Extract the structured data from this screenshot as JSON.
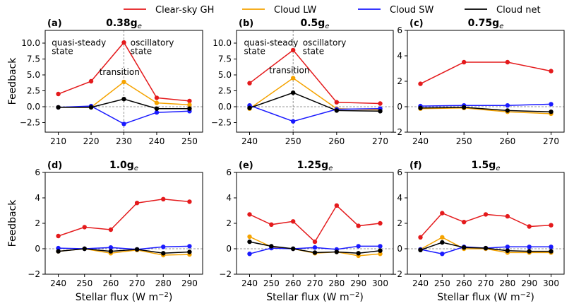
{
  "chart_data": {
    "type": "line",
    "legend": {
      "position": "top",
      "entries": [
        {
          "name": "Clear-sky GH",
          "color": "#e41a1c"
        },
        {
          "name": "Cloud LW",
          "color": "#f5a300"
        },
        {
          "name": "Cloud SW",
          "color": "#1a1aff"
        },
        {
          "name": "Cloud net",
          "color": "#000000"
        }
      ]
    },
    "xlabel": "Stellar flux (W m$^{-2}$)",
    "xlabel_text": "Stellar flux (W m",
    "xlabel_exp": "−2",
    "ylabel": "Feedback",
    "panels": [
      {
        "label": "(a)",
        "title_main": "0.38g",
        "title_sub": "e",
        "x": [
          210,
          220,
          230,
          240,
          250
        ],
        "xticks": [
          "210",
          "220",
          "230",
          "240",
          "250"
        ],
        "ylim": [
          -4,
          12
        ],
        "yticks": [
          "−2.5",
          "0.0",
          "2.5",
          "5.0",
          "7.5",
          "10.0"
        ],
        "ytick_values": [
          -2.5,
          0,
          2.5,
          5,
          7.5,
          10
        ],
        "vline": 230,
        "annotations": [
          {
            "text": "quasi-steady",
            "x": 208,
            "y": 9.6,
            "anchor": "start"
          },
          {
            "text": "state",
            "x": 208,
            "y": 8.3,
            "anchor": "start"
          },
          {
            "text": "oscillatory",
            "x": 232,
            "y": 9.6,
            "anchor": "start"
          },
          {
            "text": "state",
            "x": 232,
            "y": 8.3,
            "anchor": "start"
          },
          {
            "text": "transition",
            "x": 222.5,
            "y": 5.0,
            "anchor": "start"
          }
        ],
        "series": [
          {
            "name": "Clear-sky GH",
            "values": [
              2.0,
              4.0,
              10.1,
              1.4,
              0.9
            ]
          },
          {
            "name": "Cloud LW",
            "values": [
              -0.1,
              -0.1,
              3.9,
              0.6,
              0.3
            ]
          },
          {
            "name": "Cloud SW",
            "values": [
              -0.1,
              0.1,
              -2.7,
              -0.9,
              -0.7
            ]
          },
          {
            "name": "Cloud net",
            "values": [
              -0.1,
              -0.1,
              1.2,
              -0.3,
              -0.3
            ]
          }
        ]
      },
      {
        "label": "(b)",
        "title_main": "0.5g",
        "title_sub": "e",
        "x": [
          240,
          250,
          260,
          270
        ],
        "xticks": [
          "240",
          "250",
          "260",
          "270"
        ],
        "ylim": [
          -4,
          12
        ],
        "yticks": [
          "−2.5",
          "0.0",
          "2.5",
          "5.0",
          "7.5",
          "10.0"
        ],
        "ytick_values": [
          -2.5,
          0,
          2.5,
          5,
          7.5,
          10
        ],
        "vline": 250,
        "annotations": [
          {
            "text": "quasi-steady",
            "x": 238.7,
            "y": 9.6,
            "anchor": "start"
          },
          {
            "text": "state",
            "x": 238.7,
            "y": 8.3,
            "anchor": "start"
          },
          {
            "text": "oscillatory",
            "x": 252.2,
            "y": 9.6,
            "anchor": "start"
          },
          {
            "text": "state",
            "x": 252.2,
            "y": 8.3,
            "anchor": "start"
          },
          {
            "text": "transition",
            "x": 244.5,
            "y": 5.3,
            "anchor": "start"
          }
        ],
        "series": [
          {
            "name": "Clear-sky GH",
            "values": [
              3.7,
              8.9,
              0.7,
              0.5
            ]
          },
          {
            "name": "Cloud LW",
            "values": [
              -0.3,
              4.5,
              -0.3,
              -0.5
            ]
          },
          {
            "name": "Cloud SW",
            "values": [
              0.2,
              -2.3,
              -0.4,
              -0.3
            ]
          },
          {
            "name": "Cloud net",
            "values": [
              -0.2,
              2.2,
              -0.6,
              -0.7
            ]
          }
        ]
      },
      {
        "label": "(c)",
        "title_main": "0.75g",
        "title_sub": "e",
        "x": [
          240,
          250,
          260,
          270
        ],
        "xticks": [
          "240",
          "250",
          "260",
          "270"
        ],
        "ylim": [
          -2,
          6
        ],
        "yticks": [
          "−2",
          "0",
          "2",
          "4",
          "6"
        ],
        "ytick_values": [
          -2,
          0,
          2,
          4,
          6
        ],
        "series": [
          {
            "name": "Clear-sky GH",
            "values": [
              1.8,
              3.5,
              3.5,
              2.8
            ]
          },
          {
            "name": "Cloud LW",
            "values": [
              -0.15,
              -0.1,
              -0.4,
              -0.55
            ]
          },
          {
            "name": "Cloud SW",
            "values": [
              0.05,
              0.1,
              0.1,
              0.2
            ]
          },
          {
            "name": "Cloud net",
            "values": [
              -0.1,
              -0.05,
              -0.3,
              -0.4
            ]
          }
        ]
      },
      {
        "label": "(d)",
        "title_main": "1.0g",
        "title_sub": "e",
        "x": [
          240,
          250,
          260,
          270,
          280,
          290
        ],
        "xticks": [
          "240",
          "250",
          "260",
          "270",
          "280",
          "290"
        ],
        "ylim": [
          -2,
          6
        ],
        "yticks": [
          "−2",
          "0",
          "2",
          "4",
          "6"
        ],
        "ytick_values": [
          -2,
          0,
          2,
          4,
          6
        ],
        "series": [
          {
            "name": "Clear-sky GH",
            "values": [
              1.0,
              1.7,
              1.5,
              3.6,
              3.9,
              3.7
            ]
          },
          {
            "name": "Cloud LW",
            "values": [
              -0.2,
              0.0,
              -0.35,
              -0.1,
              -0.5,
              -0.45
            ]
          },
          {
            "name": "Cloud SW",
            "values": [
              0.05,
              0.0,
              0.1,
              -0.05,
              0.15,
              0.2
            ]
          },
          {
            "name": "Cloud net",
            "values": [
              -0.2,
              0.0,
              -0.2,
              -0.05,
              -0.35,
              -0.25
            ]
          }
        ]
      },
      {
        "label": "(e)",
        "title_main": "1.25g",
        "title_sub": "e",
        "x": [
          240,
          250,
          260,
          270,
          280,
          290,
          300
        ],
        "xticks": [
          "240",
          "250",
          "260",
          "270",
          "280",
          "290",
          "300"
        ],
        "ylim": [
          -2,
          6
        ],
        "yticks": [
          "−2",
          "0",
          "2",
          "4",
          "6"
        ],
        "ytick_values": [
          -2,
          0,
          2,
          4,
          6
        ],
        "series": [
          {
            "name": "Clear-sky GH",
            "values": [
              2.7,
              1.9,
              2.15,
              0.55,
              3.4,
              1.8,
              2.0
            ]
          },
          {
            "name": "Cloud LW",
            "values": [
              0.95,
              0.15,
              0.0,
              -0.35,
              -0.25,
              -0.55,
              -0.4
            ]
          },
          {
            "name": "Cloud SW",
            "values": [
              -0.4,
              0.05,
              0.0,
              0.1,
              -0.05,
              0.2,
              0.2
            ]
          },
          {
            "name": "Cloud net",
            "values": [
              0.55,
              0.2,
              0.0,
              -0.3,
              -0.25,
              -0.35,
              -0.15
            ]
          }
        ]
      },
      {
        "label": "(f)",
        "title_main": "1.5g",
        "title_sub": "e",
        "x": [
          240,
          250,
          260,
          270,
          280,
          290,
          300
        ],
        "xticks": [
          "240",
          "250",
          "260",
          "270",
          "280",
          "290",
          "300"
        ],
        "ylim": [
          -2,
          6
        ],
        "yticks": [
          "−2",
          "0",
          "2",
          "4",
          "6"
        ],
        "ytick_values": [
          -2,
          0,
          2,
          4,
          6
        ],
        "series": [
          {
            "name": "Clear-sky GH",
            "values": [
              0.9,
              2.8,
              2.1,
              2.7,
              2.55,
              1.75,
              1.85
            ]
          },
          {
            "name": "Cloud LW",
            "values": [
              -0.05,
              0.9,
              0.0,
              0.0,
              -0.3,
              -0.3,
              -0.3
            ]
          },
          {
            "name": "Cloud SW",
            "values": [
              -0.05,
              -0.4,
              0.15,
              0.05,
              0.15,
              0.15,
              0.15
            ]
          },
          {
            "name": "Cloud net",
            "values": [
              -0.1,
              0.5,
              0.1,
              0.05,
              -0.15,
              -0.2,
              -0.2
            ]
          }
        ]
      }
    ]
  }
}
